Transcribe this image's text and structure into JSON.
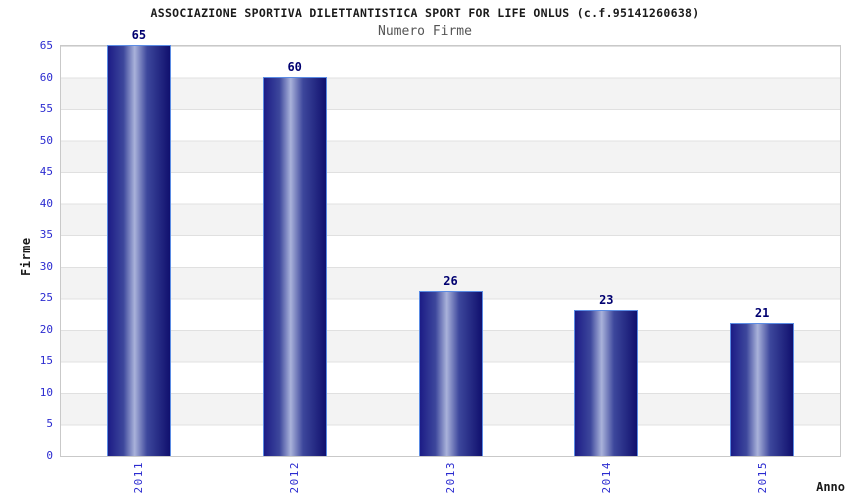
{
  "chart_data": {
    "type": "bar",
    "title": "ASSOCIAZIONE SPORTIVA DILETTANTISTICA SPORT FOR LIFE ONLUS (c.f.95141260638)",
    "subtitle": "Numero Firme",
    "xlabel": "Anno",
    "ylabel": "Firme",
    "categories": [
      "2011",
      "2012",
      "2013",
      "2014",
      "2015"
    ],
    "values": [
      65,
      60,
      26,
      23,
      21
    ],
    "ylim": [
      0,
      65
    ],
    "yticks": [
      0,
      5,
      10,
      15,
      20,
      25,
      30,
      35,
      40,
      45,
      50,
      55,
      60,
      65
    ],
    "grid": "horizontal-bands-every-5",
    "legend": "none"
  },
  "colors": {
    "title_text": "#1a1a1a",
    "subtitle_text": "#555555",
    "axis_tick_text": "#2b2bd0",
    "value_label_text": "#000070",
    "bar_edge_dark": "#1c1c86",
    "bar_edge_dark2": "#10106e",
    "bar_mid": "#3d479c",
    "bar_highlight": "#a9b2da",
    "bar_border": "#5b8ce4",
    "band_gray": "#f3f3f3",
    "gridline": "#e0e0e0",
    "plot_border": "#c9c9c9"
  }
}
